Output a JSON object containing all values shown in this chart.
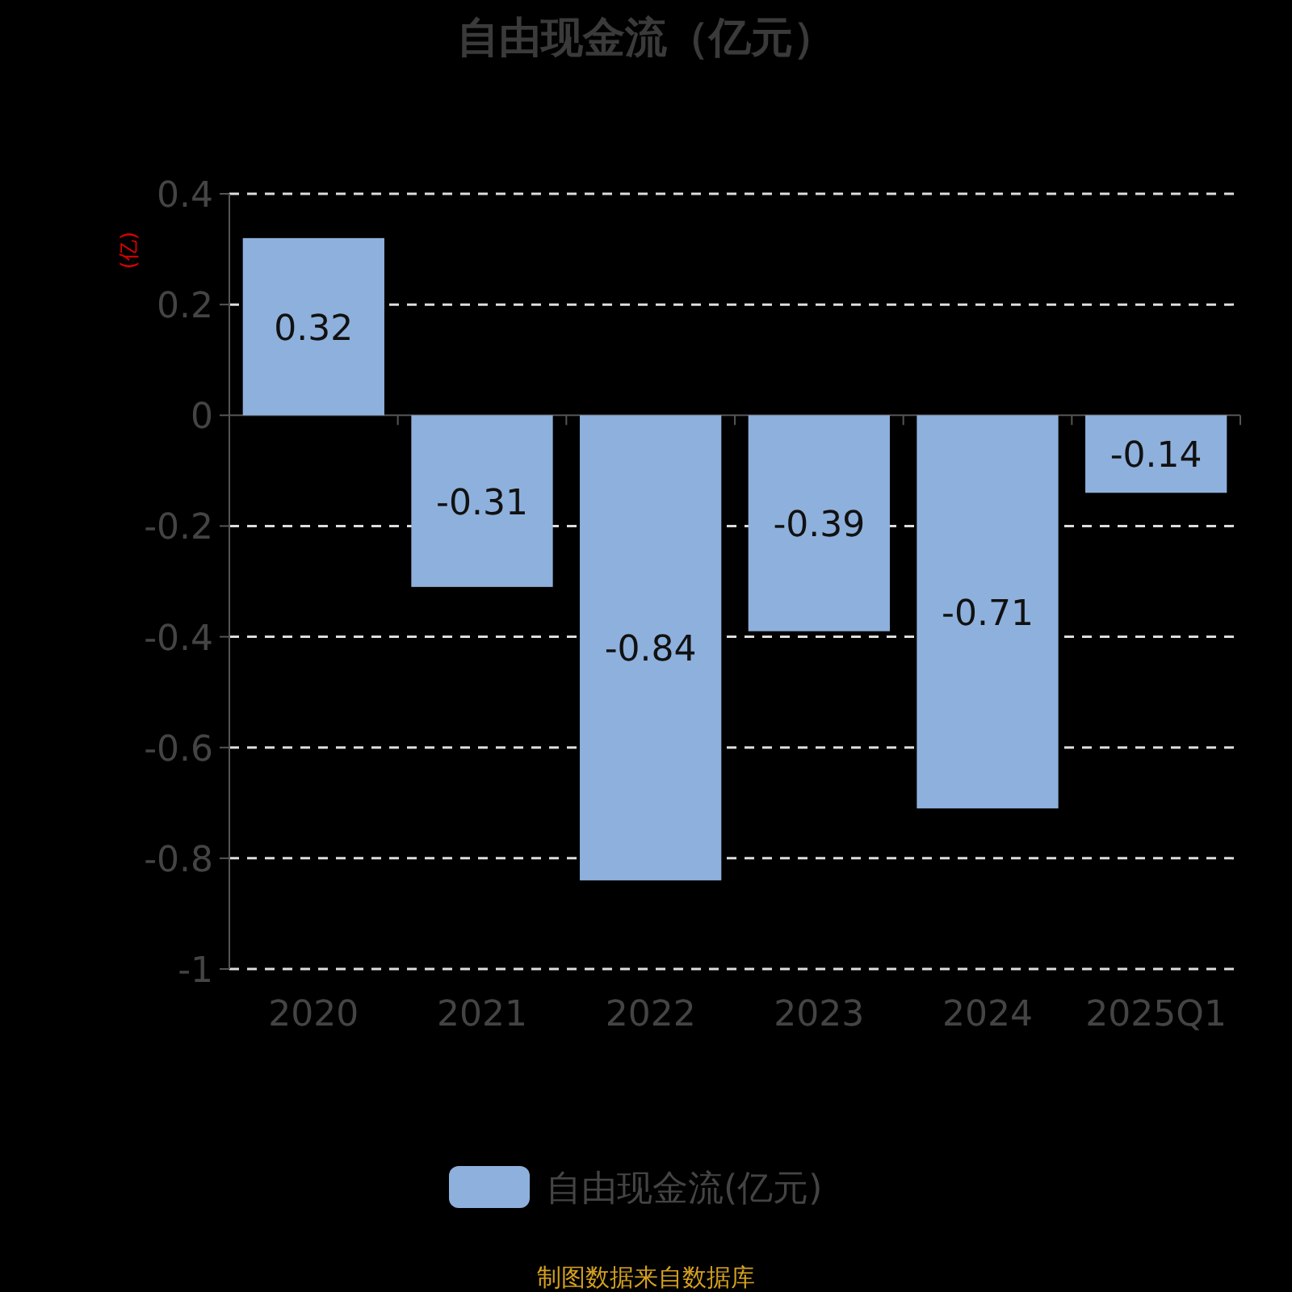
{
  "chart_data": {
    "type": "bar",
    "title": "自由现金流（亿元）",
    "ylabel": "(亿)",
    "categories": [
      "2020",
      "2021",
      "2022",
      "2023",
      "2024",
      "2025Q1"
    ],
    "series": [
      {
        "name": "自由现金流(亿元)",
        "color": "#8eb0dc",
        "values": [
          0.32,
          -0.31,
          -0.84,
          -0.39,
          -0.71,
          -0.14
        ]
      }
    ],
    "ylim": [
      -1,
      0.4
    ],
    "yticks": [
      -1,
      -0.8,
      -0.6,
      -0.4,
      -0.2,
      0,
      0.2,
      0.4
    ],
    "grid": "y",
    "legend": "bottom",
    "data_labels": true,
    "annotations": [
      "制图数据来自数据库"
    ]
  }
}
